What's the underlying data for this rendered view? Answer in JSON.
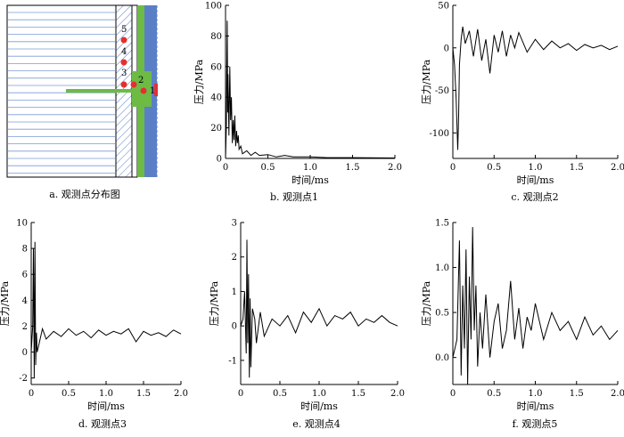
{
  "schematic": {
    "caption": "a. 观测点分布图",
    "points": [
      "1",
      "2",
      "3",
      "4",
      "5"
    ]
  },
  "chart_data": [
    {
      "id": "b",
      "type": "line",
      "caption": "b. 观测点1",
      "xlabel": "时间/ms",
      "ylabel": "压力/MPa",
      "xlim": [
        0,
        2.0
      ],
      "ylim": [
        0,
        100
      ],
      "xticks": [
        "0",
        "0.5",
        "1.0",
        "1.5",
        "2.0"
      ],
      "yticks": [
        "0",
        "20",
        "40",
        "60",
        "80",
        "100"
      ],
      "x": [
        0,
        0.01,
        0.02,
        0.025,
        0.03,
        0.04,
        0.05,
        0.06,
        0.07,
        0.08,
        0.09,
        0.1,
        0.11,
        0.12,
        0.13,
        0.14,
        0.15,
        0.16,
        0.18,
        0.2,
        0.25,
        0.3,
        0.35,
        0.4,
        0.5,
        0.6,
        0.7,
        0.8,
        1.0,
        1.2,
        1.5,
        2.0
      ],
      "y": [
        0,
        20,
        90,
        30,
        55,
        15,
        60,
        25,
        40,
        10,
        25,
        12,
        28,
        8,
        18,
        10,
        15,
        6,
        8,
        3,
        5,
        2,
        4,
        2,
        2.5,
        1,
        2,
        1,
        1,
        0.5,
        0.5,
        0.3
      ]
    },
    {
      "id": "c",
      "type": "line",
      "caption": "c. 观测点2",
      "xlabel": "时间/ms",
      "ylabel": "压力/MPa",
      "xlim": [
        0,
        2.0
      ],
      "ylim": [
        -130,
        50
      ],
      "xticks": [
        "0",
        "0.5",
        "1.0",
        "1.5",
        "2.0"
      ],
      "yticks": [
        "-100",
        "-50",
        "0",
        "50"
      ],
      "x": [
        0,
        0.02,
        0.04,
        0.06,
        0.07,
        0.08,
        0.1,
        0.12,
        0.15,
        0.2,
        0.25,
        0.3,
        0.35,
        0.4,
        0.45,
        0.5,
        0.55,
        0.6,
        0.65,
        0.7,
        0.75,
        0.8,
        0.9,
        1.0,
        1.1,
        1.2,
        1.3,
        1.4,
        1.5,
        1.6,
        1.7,
        1.8,
        1.9,
        2.0
      ],
      "y": [
        0,
        -20,
        -60,
        -120,
        -80,
        -20,
        10,
        25,
        5,
        20,
        -10,
        22,
        -15,
        10,
        -30,
        15,
        -5,
        20,
        -10,
        15,
        0,
        18,
        -5,
        10,
        -2,
        8,
        0,
        5,
        -3,
        4,
        0,
        3,
        -2,
        2
      ]
    },
    {
      "id": "d",
      "type": "line",
      "caption": "d. 观测点3",
      "xlabel": "时间/ms",
      "ylabel": "压力/MPa",
      "xlim": [
        0,
        2.0
      ],
      "ylim": [
        -2.5,
        10
      ],
      "xticks": [
        "0",
        "0.5",
        "1.0",
        "1.5",
        "2.0"
      ],
      "yticks": [
        "-2",
        "0",
        "2",
        "4",
        "6",
        "8",
        "10"
      ],
      "x": [
        0,
        0.02,
        0.03,
        0.04,
        0.05,
        0.06,
        0.07,
        0.08,
        0.1,
        0.15,
        0.2,
        0.3,
        0.4,
        0.5,
        0.6,
        0.7,
        0.8,
        0.9,
        1.0,
        1.1,
        1.2,
        1.3,
        1.4,
        1.5,
        1.6,
        1.7,
        1.8,
        1.9,
        2.0
      ],
      "y": [
        0,
        2,
        8,
        -2,
        8.5,
        -1,
        1.5,
        0,
        0.5,
        1.8,
        1.0,
        1.6,
        1.2,
        1.8,
        1.3,
        1.6,
        1.1,
        1.7,
        1.3,
        1.6,
        1.4,
        1.8,
        0.8,
        1.6,
        1.3,
        1.5,
        1.2,
        1.7,
        1.4
      ]
    },
    {
      "id": "e",
      "type": "line",
      "caption": "e. 观测点4",
      "xlabel": "时间/ms",
      "ylabel": "压力/MPa",
      "xlim": [
        0,
        2.0
      ],
      "ylim": [
        -1.7,
        3
      ],
      "xticks": [
        "0",
        "0.5",
        "1.0",
        "1.5",
        "2.0"
      ],
      "yticks": [
        "-1",
        "0",
        "1",
        "2",
        "3"
      ],
      "x": [
        0,
        0.03,
        0.05,
        0.07,
        0.08,
        0.09,
        0.1,
        0.11,
        0.12,
        0.13,
        0.15,
        0.18,
        0.2,
        0.25,
        0.3,
        0.4,
        0.5,
        0.6,
        0.7,
        0.8,
        0.9,
        1.0,
        1.1,
        1.2,
        1.3,
        1.4,
        1.5,
        1.6,
        1.7,
        1.8,
        1.9,
        2.0
      ],
      "y": [
        0,
        0.2,
        1.0,
        -0.8,
        2.5,
        -0.5,
        1.5,
        -1.5,
        0.8,
        -1.2,
        0.5,
        0.2,
        -0.5,
        0.4,
        -0.3,
        0.2,
        0.0,
        0.3,
        -0.2,
        0.4,
        0.1,
        0.5,
        0.0,
        0.3,
        0.2,
        0.4,
        0.0,
        0.2,
        0.1,
        0.3,
        0.1,
        0.0
      ]
    },
    {
      "id": "f",
      "type": "line",
      "caption": "f. 观测点5",
      "xlabel": "时间/ms",
      "ylabel": "压力/MPa",
      "xlim": [
        0,
        2.0
      ],
      "ylim": [
        -0.3,
        1.5
      ],
      "xticks": [
        "0",
        "0.5",
        "1.0",
        "1.5",
        "2.0"
      ],
      "yticks": [
        "0.0",
        "0.5",
        "1.0",
        "1.5"
      ],
      "x": [
        0,
        0.05,
        0.08,
        0.1,
        0.12,
        0.14,
        0.16,
        0.18,
        0.2,
        0.22,
        0.24,
        0.26,
        0.28,
        0.3,
        0.33,
        0.36,
        0.4,
        0.45,
        0.5,
        0.55,
        0.6,
        0.65,
        0.7,
        0.75,
        0.8,
        0.85,
        0.9,
        0.95,
        1.0,
        1.1,
        1.2,
        1.3,
        1.4,
        1.5,
        1.6,
        1.7,
        1.8,
        1.9,
        2.0
      ],
      "y": [
        0,
        0.2,
        1.3,
        -0.2,
        0.8,
        0.1,
        1.2,
        -0.3,
        0.9,
        0.2,
        1.45,
        0.3,
        0.8,
        -0.1,
        0.5,
        0.1,
        0.7,
        0.0,
        0.4,
        0.6,
        0.1,
        0.3,
        0.85,
        0.2,
        0.55,
        0.1,
        0.45,
        0.3,
        0.6,
        0.2,
        0.5,
        0.3,
        0.4,
        0.2,
        0.45,
        0.25,
        0.35,
        0.2,
        0.3
      ]
    }
  ]
}
